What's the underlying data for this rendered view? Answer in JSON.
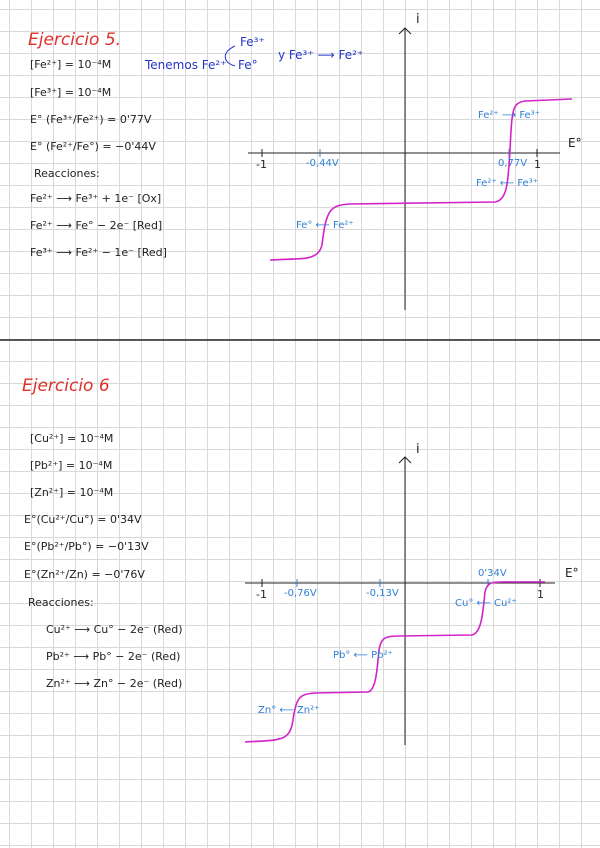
{
  "exercise5": {
    "title": "Ejercicio 5.",
    "given": [
      "[Fe²⁺] = 10⁻⁴M",
      "[Fe³⁺] = 10⁻⁴M",
      "E° (Fe³⁺/Fe²⁺) = 0'77V",
      "E° (Fe²⁺/Fe°) = −0'44V"
    ],
    "note": {
      "start": "Tenemos Fe²⁺",
      "up": "Fe³⁺",
      "down": "Fe°",
      "rest": "y Fe³⁺ ⟶ Fe²⁺"
    },
    "reactions_title": "Reacciones:",
    "reactions": [
      "Fe²⁺ ⟶ Fe³⁺ + 1e⁻  [Ox]",
      "Fe²⁺ ⟶ Fe° − 2e⁻  [Red]",
      "Fe³⁺ ⟶ Fe²⁺ − 1e⁻  [Red]"
    ],
    "graph": {
      "y_label": "i",
      "x_label": "E°",
      "ticks": [
        "-1",
        "-0,44V",
        "0,77V",
        "1"
      ],
      "annotations": [
        "Fe²⁺ ⟶ Fe³⁺",
        "Fe²⁺ ⟵ Fe³⁺",
        "Fe° ⟵ Fe²⁺"
      ]
    }
  },
  "exercise6": {
    "title": "Ejercicio 6",
    "given": [
      "[Cu²⁺] = 10⁻⁴M",
      "[Pb²⁺] = 10⁻⁴M",
      "[Zn²⁺] = 10⁻⁴M",
      "E°(Cu²⁺/Cu°) = 0'34V",
      "E°(Pb²⁺/Pb°) = −0'13V",
      "E°(Zn²⁺/Zn) = −0'76V"
    ],
    "reactions_title": "Reacciones:",
    "reactions": [
      "Cu²⁺ ⟶ Cu° − 2e⁻  (Red)",
      "Pb²⁺ ⟶ Pb° − 2e⁻  (Red)",
      "Zn²⁺ ⟶ Zn° − 2e⁻  (Red)"
    ],
    "graph": {
      "y_label": "i",
      "x_label": "E°",
      "ticks": [
        "-1",
        "-0,76V",
        "-0,13V",
        "0'34V",
        "1"
      ],
      "annotations": [
        "Cu° ⟵ Cu²⁺",
        "Pb° ⟵ Pb²⁺",
        "Zn° ⟵ Zn²⁺"
      ]
    }
  }
}
